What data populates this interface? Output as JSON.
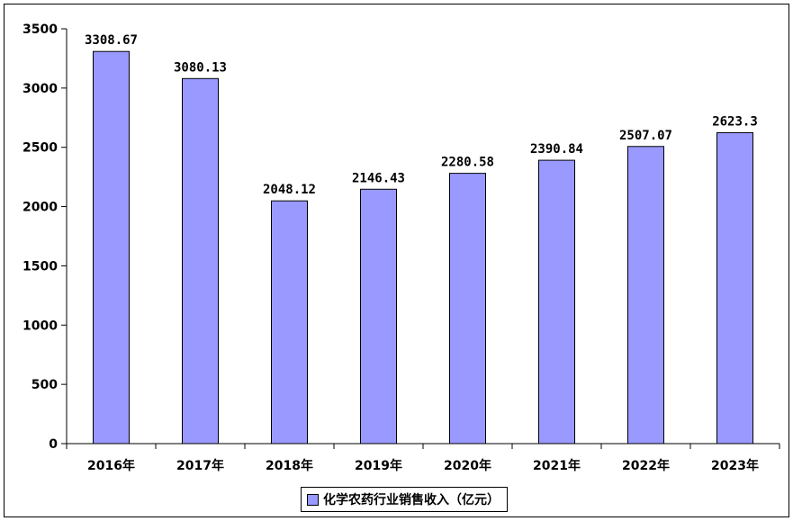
{
  "chart_data": {
    "type": "bar",
    "title": "",
    "xlabel": "",
    "ylabel": "",
    "categories": [
      "2016年",
      "2017年",
      "2018年",
      "2019年",
      "2020年",
      "2021年",
      "2022年",
      "2023年"
    ],
    "series": [
      {
        "name": "化学农药行业销售收入（亿元）",
        "values": [
          3308.67,
          3080.13,
          2048.12,
          2146.43,
          2280.58,
          2390.84,
          2507.07,
          2623.3
        ],
        "labels": [
          "3308.67",
          "3080.13",
          "2048.12",
          "2146.43",
          "2280.58",
          "2390.84",
          "2507.07",
          "2623.3"
        ],
        "color": "#9999ff"
      }
    ],
    "ylim": [
      0,
      3500
    ],
    "yticks": [
      0,
      500,
      1000,
      1500,
      2000,
      2500,
      3000,
      3500
    ],
    "grid": false,
    "legend_position": "bottom"
  }
}
